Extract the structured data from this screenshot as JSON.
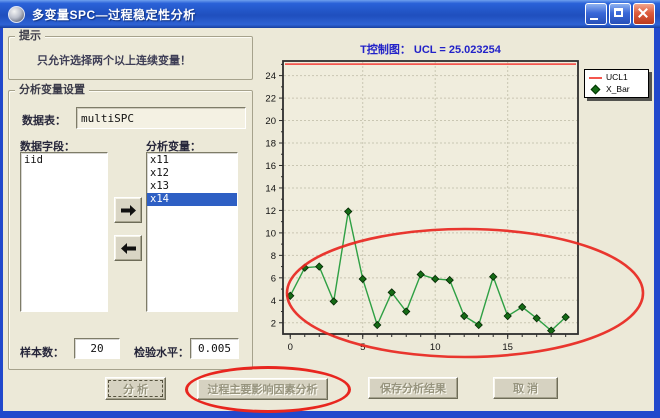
{
  "window": {
    "title": "多变量SPC—过程稳定性分析",
    "controls": {
      "minimize": "minimize",
      "maximize": "maximize",
      "close": "close"
    }
  },
  "hint_group": {
    "title": "提示",
    "text": "只允许选择两个以上连续变量！"
  },
  "settings_group": {
    "title": "分析变量设置",
    "data_table_label": "数据表：",
    "data_table_value": "multiSPC",
    "fields_label": "数据字段：",
    "fields_items": [
      "iid"
    ],
    "fields_selected_index": -1,
    "vars_label": "分析变量：",
    "vars_items": [
      "x11",
      "x12",
      "x13",
      "x14"
    ],
    "vars_selected_index": 3,
    "sample_label": "样本数：",
    "sample_value": "20",
    "level_label": "检验水平：",
    "level_value": "0.005"
  },
  "buttons": {
    "analyze": "分 析",
    "factor": "过程主要影响因素分析",
    "save": "保存分析结果",
    "cancel": "取 消"
  },
  "icons": {
    "move_right": "arrow-right",
    "move_left": "arrow-left"
  },
  "chart_data": {
    "type": "line",
    "title": "T控制图：  UCL = 25.023254",
    "title_color": "#2222C8",
    "xlim": [
      -0.5,
      19.85
    ],
    "ylim": [
      1,
      25.3
    ],
    "xticks": [
      0,
      5,
      10,
      15
    ],
    "yticks": [
      2,
      4,
      6,
      8,
      10,
      12,
      14,
      16,
      18,
      20,
      22,
      24
    ],
    "grid": true,
    "legend_position": "top-right-outside",
    "series": [
      {
        "name": "UCL1",
        "type": "hline",
        "value": 25.023254,
        "color": "#F4564E"
      },
      {
        "name": "X_Bar",
        "type": "line-markers",
        "color": "#2FA044",
        "marker_color": "#156A15",
        "x": [
          0,
          1,
          2,
          3,
          4,
          5,
          6,
          7,
          8,
          9,
          10,
          11,
          12,
          13,
          14,
          15,
          16,
          17,
          18,
          19
        ],
        "y": [
          4.4,
          6.9,
          7.0,
          3.9,
          11.9,
          5.9,
          1.8,
          4.7,
          3.0,
          6.3,
          5.9,
          5.8,
          2.6,
          1.8,
          6.1,
          2.6,
          3.4,
          2.4,
          1.3,
          2.5
        ]
      }
    ]
  },
  "annotations": {
    "color": "#E8261F",
    "chart_ellipse": "red ellipse circling lower cluster of points",
    "button_ellipse": "red ellipse circling factor-analysis button"
  }
}
